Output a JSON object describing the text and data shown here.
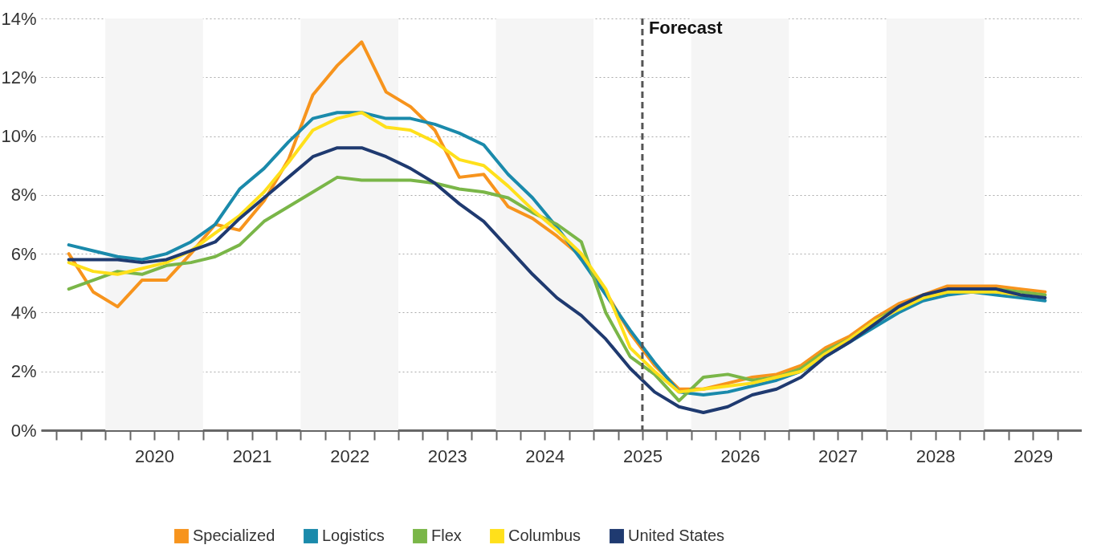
{
  "chart_data": {
    "type": "line",
    "x": [
      2019.625,
      2019.875,
      2020.125,
      2020.375,
      2020.625,
      2020.875,
      2021.125,
      2021.375,
      2021.625,
      2021.875,
      2022.125,
      2022.375,
      2022.625,
      2022.875,
      2023.125,
      2023.375,
      2023.625,
      2023.875,
      2024.125,
      2024.375,
      2024.625,
      2024.875,
      2025.125,
      2025.375,
      2025.625,
      2025.875,
      2026.125,
      2026.375,
      2026.625,
      2026.875,
      2027.125,
      2027.375,
      2027.625,
      2027.875,
      2028.125,
      2028.375,
      2028.625,
      2028.875,
      2029.125,
      2029.375,
      2029.625
    ],
    "series": [
      {
        "name": "Specialized",
        "color": "#f7941d",
        "values": [
          6.0,
          4.7,
          4.2,
          5.1,
          5.1,
          6.0,
          7.0,
          6.8,
          7.8,
          9.2,
          11.4,
          12.4,
          13.2,
          11.5,
          11.0,
          10.2,
          8.6,
          8.7,
          7.6,
          7.2,
          6.6,
          5.9,
          4.7,
          3.3,
          2.2,
          1.4,
          1.4,
          1.6,
          1.8,
          1.9,
          2.2,
          2.8,
          3.2,
          3.8,
          4.3,
          4.6,
          4.9,
          4.9,
          4.9,
          4.8,
          4.7
        ]
      },
      {
        "name": "Logistics",
        "color": "#1a8aab",
        "values": [
          6.3,
          6.1,
          5.9,
          5.8,
          6.0,
          6.4,
          7.0,
          8.2,
          8.9,
          9.8,
          10.6,
          10.8,
          10.8,
          10.6,
          10.6,
          10.4,
          10.1,
          9.7,
          8.7,
          7.9,
          6.9,
          5.8,
          4.6,
          3.4,
          2.3,
          1.3,
          1.2,
          1.3,
          1.5,
          1.7,
          2.0,
          2.5,
          3.0,
          3.5,
          4.0,
          4.4,
          4.6,
          4.7,
          4.6,
          4.5,
          4.4
        ]
      },
      {
        "name": "Flex",
        "color": "#7ab648",
        "values": [
          4.8,
          5.1,
          5.4,
          5.3,
          5.6,
          5.7,
          5.9,
          6.3,
          7.1,
          7.6,
          8.1,
          8.6,
          8.5,
          8.5,
          8.5,
          8.4,
          8.2,
          8.1,
          7.9,
          7.4,
          7.0,
          6.4,
          4.0,
          2.5,
          1.9,
          1.0,
          1.8,
          1.9,
          1.7,
          1.8,
          2.1,
          2.7,
          3.1,
          3.7,
          4.2,
          4.5,
          4.7,
          4.8,
          4.8,
          4.7,
          4.6
        ]
      },
      {
        "name": "Columbus",
        "color": "#ffe01b",
        "values": [
          5.7,
          5.4,
          5.3,
          5.5,
          5.7,
          6.1,
          6.7,
          7.3,
          8.1,
          9.1,
          10.2,
          10.6,
          10.8,
          10.3,
          10.2,
          9.8,
          9.2,
          9.0,
          8.3,
          7.5,
          6.8,
          6.0,
          4.8,
          2.8,
          2.0,
          1.3,
          1.4,
          1.5,
          1.6,
          1.8,
          2.0,
          2.6,
          3.1,
          3.7,
          4.1,
          4.5,
          4.7,
          4.7,
          4.7,
          4.6,
          null
        ]
      },
      {
        "name": "United States",
        "color": "#1f3a70",
        "values": [
          5.8,
          5.8,
          5.8,
          5.7,
          5.8,
          6.1,
          6.4,
          7.2,
          7.9,
          8.6,
          9.3,
          9.6,
          9.6,
          9.3,
          8.9,
          8.4,
          7.7,
          7.1,
          6.2,
          5.3,
          4.5,
          3.9,
          3.1,
          2.1,
          1.3,
          0.8,
          0.6,
          0.8,
          1.2,
          1.4,
          1.8,
          2.5,
          3.0,
          3.6,
          4.2,
          4.6,
          4.8,
          4.8,
          4.8,
          4.6,
          4.5
        ]
      }
    ],
    "xlim": [
      2019.34,
      2030
    ],
    "xticks": [
      {
        "value": 2019.5,
        "label": null
      },
      {
        "value": 2019.75,
        "label": null
      },
      {
        "value": 2020,
        "label": null
      },
      {
        "value": 2020.25,
        "label": null
      },
      {
        "value": 2020.5,
        "label": "2020"
      },
      {
        "value": 2020.75,
        "label": null
      },
      {
        "value": 2021,
        "label": null
      },
      {
        "value": 2021.25,
        "label": null
      },
      {
        "value": 2021.5,
        "label": "2021"
      },
      {
        "value": 2021.75,
        "label": null
      },
      {
        "value": 2022,
        "label": null
      },
      {
        "value": 2022.25,
        "label": null
      },
      {
        "value": 2022.5,
        "label": "2022"
      },
      {
        "value": 2022.75,
        "label": null
      },
      {
        "value": 2023,
        "label": null
      },
      {
        "value": 2023.25,
        "label": null
      },
      {
        "value": 2023.5,
        "label": "2023"
      },
      {
        "value": 2023.75,
        "label": null
      },
      {
        "value": 2024,
        "label": null
      },
      {
        "value": 2024.25,
        "label": null
      },
      {
        "value": 2024.5,
        "label": "2024"
      },
      {
        "value": 2024.75,
        "label": null
      },
      {
        "value": 2025,
        "label": null
      },
      {
        "value": 2025.25,
        "label": null
      },
      {
        "value": 2025.5,
        "label": "2025"
      },
      {
        "value": 2025.75,
        "label": null
      },
      {
        "value": 2026,
        "label": null
      },
      {
        "value": 2026.25,
        "label": null
      },
      {
        "value": 2026.5,
        "label": "2026"
      },
      {
        "value": 2026.75,
        "label": null
      },
      {
        "value": 2027,
        "label": null
      },
      {
        "value": 2027.25,
        "label": null
      },
      {
        "value": 2027.5,
        "label": "2027"
      },
      {
        "value": 2027.75,
        "label": null
      },
      {
        "value": 2028,
        "label": null
      },
      {
        "value": 2028.25,
        "label": null
      },
      {
        "value": 2028.5,
        "label": "2028"
      },
      {
        "value": 2028.75,
        "label": null
      },
      {
        "value": 2029,
        "label": null
      },
      {
        "value": 2029.25,
        "label": null
      },
      {
        "value": 2029.5,
        "label": "2029"
      },
      {
        "value": 2029.75,
        "label": null
      }
    ],
    "ylim": [
      0,
      14
    ],
    "yticks": [
      {
        "value": 0,
        "label": "0%"
      },
      {
        "value": 2,
        "label": "2%"
      },
      {
        "value": 4,
        "label": "4%"
      },
      {
        "value": 6,
        "label": "6%"
      },
      {
        "value": 8,
        "label": "8%"
      },
      {
        "value": 10,
        "label": "10%"
      },
      {
        "value": 12,
        "label": "12%"
      },
      {
        "value": 14,
        "label": "14%"
      }
    ],
    "bands": [
      {
        "axis": "x",
        "from": 2020,
        "to": 2021,
        "color": "#f5f5f5"
      },
      {
        "axis": "x",
        "from": 2022,
        "to": 2023,
        "color": "#f5f5f5"
      },
      {
        "axis": "x",
        "from": 2024,
        "to": 2025,
        "color": "#f5f5f5"
      },
      {
        "axis": "x",
        "from": 2026,
        "to": 2027,
        "color": "#f5f5f5"
      },
      {
        "axis": "x",
        "from": 2028,
        "to": 2029,
        "color": "#f5f5f5"
      }
    ],
    "ref_lines": [
      {
        "axis": "x",
        "value": 2025.5,
        "label": "Forecast",
        "color": "#555555",
        "line_style": "dashed"
      }
    ],
    "grid": "y",
    "legend": "bottom",
    "marker": "none",
    "line_style": "solid"
  }
}
